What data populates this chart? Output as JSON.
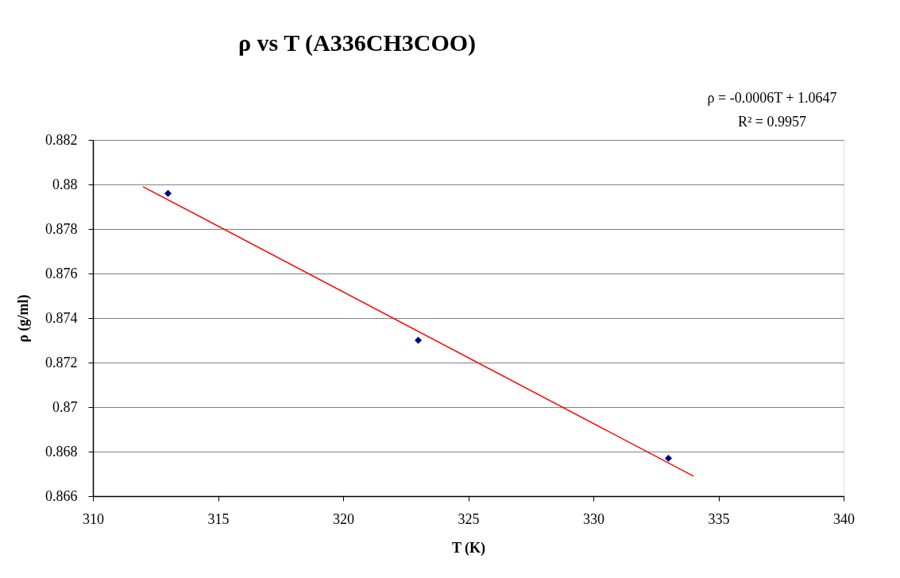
{
  "chart_data": {
    "type": "scatter",
    "title": "ρ vs T (A336CH3COO)",
    "xlabel": "T (K)",
    "ylabel": "ρ (g/ml)",
    "series": [
      {
        "color": "#000080",
        "marker": "diamond",
        "x": [
          313,
          323,
          333
        ],
        "values": [
          0.8796,
          0.873,
          0.8677
        ]
      },
      {
        "type": "line",
        "color": "#ff0000",
        "line_style": "solid",
        "x": [
          312,
          334
        ],
        "values": [
          0.8799,
          0.8669
        ]
      }
    ],
    "xlim": [
      310,
      340
    ],
    "xticks": [
      310,
      315,
      320,
      325,
      330,
      335,
      340
    ],
    "ylim": [
      0.866,
      0.882
    ],
    "yticks": [
      0.866,
      0.868,
      {
        "value": 0.87,
        "label": "0.87"
      },
      0.872,
      0.874,
      0.876,
      0.878,
      {
        "value": 0.88,
        "label": "0.88"
      },
      0.882
    ],
    "grid": "y",
    "annotations": [
      "ρ = -0.0006T + 1.0647",
      "R² = 0.9957"
    ]
  }
}
